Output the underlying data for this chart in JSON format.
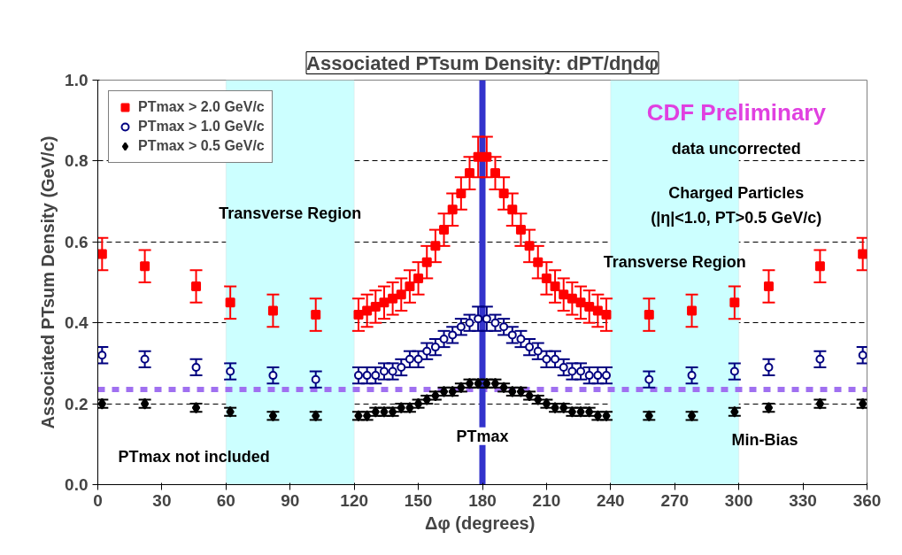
{
  "chart_data": {
    "type": "scatter",
    "title": "Associated PTsum Density: dPT/dηdφ",
    "xlabel": "Δφ  (degrees)",
    "ylabel": "Associated PTsum Density (GeV/c)",
    "x": [
      2,
      22,
      46,
      62,
      82,
      102,
      122,
      126,
      130,
      134,
      138,
      142,
      146,
      150,
      154,
      158,
      162,
      166,
      170,
      174,
      178,
      182,
      186,
      190,
      194,
      198,
      202,
      206,
      210,
      214,
      218,
      222,
      226,
      230,
      234,
      238,
      258,
      278,
      298,
      314,
      338,
      358
    ],
    "series": [
      {
        "name": "PTmax > 2.0 GeV/c",
        "color": "#ff0000",
        "marker": "square",
        "values": [
          0.57,
          0.54,
          0.49,
          0.45,
          0.43,
          0.42,
          0.42,
          0.43,
          0.44,
          0.45,
          0.46,
          0.47,
          0.49,
          0.51,
          0.55,
          0.59,
          0.63,
          0.68,
          0.72,
          0.77,
          0.81,
          0.81,
          0.77,
          0.72,
          0.68,
          0.63,
          0.59,
          0.55,
          0.51,
          0.49,
          0.47,
          0.46,
          0.45,
          0.44,
          0.43,
          0.42,
          0.42,
          0.43,
          0.45,
          0.49,
          0.54,
          0.57
        ],
        "errors": [
          0.04,
          0.04,
          0.04,
          0.04,
          0.04,
          0.04,
          0.04,
          0.04,
          0.04,
          0.04,
          0.04,
          0.04,
          0.04,
          0.04,
          0.04,
          0.04,
          0.04,
          0.04,
          0.04,
          0.04,
          0.05,
          0.05,
          0.04,
          0.04,
          0.04,
          0.04,
          0.04,
          0.04,
          0.04,
          0.04,
          0.04,
          0.04,
          0.04,
          0.04,
          0.04,
          0.04,
          0.04,
          0.04,
          0.04,
          0.04,
          0.04,
          0.04
        ]
      },
      {
        "name": "PTmax > 1.0 GeV/c",
        "color": "#000080",
        "marker": "circle",
        "values": [
          0.32,
          0.31,
          0.29,
          0.28,
          0.27,
          0.26,
          0.27,
          0.27,
          0.27,
          0.28,
          0.28,
          0.29,
          0.31,
          0.31,
          0.33,
          0.34,
          0.36,
          0.37,
          0.39,
          0.4,
          0.41,
          0.41,
          0.4,
          0.39,
          0.37,
          0.36,
          0.34,
          0.33,
          0.31,
          0.31,
          0.29,
          0.28,
          0.28,
          0.27,
          0.27,
          0.27,
          0.26,
          0.27,
          0.28,
          0.29,
          0.31,
          0.32
        ],
        "errors": [
          0.02,
          0.02,
          0.02,
          0.02,
          0.02,
          0.02,
          0.02,
          0.02,
          0.02,
          0.02,
          0.02,
          0.02,
          0.02,
          0.02,
          0.02,
          0.02,
          0.02,
          0.02,
          0.02,
          0.02,
          0.03,
          0.03,
          0.02,
          0.02,
          0.02,
          0.02,
          0.02,
          0.02,
          0.02,
          0.02,
          0.02,
          0.02,
          0.02,
          0.02,
          0.02,
          0.02,
          0.02,
          0.02,
          0.02,
          0.02,
          0.02,
          0.02
        ]
      },
      {
        "name": "PTmax > 0.5 GeV/c",
        "color": "#000000",
        "marker": "diamond",
        "values": [
          0.2,
          0.2,
          0.19,
          0.18,
          0.17,
          0.17,
          0.17,
          0.17,
          0.18,
          0.18,
          0.18,
          0.19,
          0.19,
          0.2,
          0.21,
          0.22,
          0.23,
          0.23,
          0.24,
          0.25,
          0.25,
          0.25,
          0.25,
          0.24,
          0.23,
          0.23,
          0.22,
          0.21,
          0.2,
          0.19,
          0.19,
          0.18,
          0.18,
          0.18,
          0.17,
          0.17,
          0.17,
          0.17,
          0.18,
          0.19,
          0.2,
          0.2
        ],
        "errors": [
          0.01,
          0.01,
          0.01,
          0.01,
          0.01,
          0.01,
          0.01,
          0.01,
          0.01,
          0.01,
          0.01,
          0.01,
          0.01,
          0.01,
          0.01,
          0.01,
          0.01,
          0.01,
          0.01,
          0.01,
          0.01,
          0.01,
          0.01,
          0.01,
          0.01,
          0.01,
          0.01,
          0.01,
          0.01,
          0.01,
          0.01,
          0.01,
          0.01,
          0.01,
          0.01,
          0.01,
          0.01,
          0.01,
          0.01,
          0.01,
          0.01,
          0.01
        ]
      }
    ],
    "xlim": [
      0,
      360
    ],
    "xticks": [
      0,
      30,
      60,
      90,
      120,
      150,
      180,
      210,
      240,
      270,
      300,
      330,
      360
    ],
    "ylim": [
      0,
      1
    ],
    "yticks": [
      {
        "value": 0,
        "label": "0.0"
      },
      {
        "value": 0.2,
        "label": "0.2"
      },
      {
        "value": 0.4,
        "label": "0.4"
      },
      {
        "value": 0.6,
        "label": "0.6"
      },
      {
        "value": 0.8,
        "label": "0.8"
      },
      {
        "value": 1,
        "label": "1.0"
      }
    ],
    "grid": "y",
    "legend": "top left",
    "bands": [
      {
        "axis": "x",
        "from": 60,
        "to": 120,
        "color": "#ccffff"
      },
      {
        "axis": "x",
        "from": 240,
        "to": 300,
        "color": "#ccffff"
      }
    ],
    "ref_lines": [
      {
        "axis": "y",
        "value": 0.235,
        "color": "#a070f0",
        "line_style": "dotted"
      },
      {
        "axis": "x",
        "value": 180,
        "color": "#3333cc",
        "line_style": "solid"
      }
    ],
    "annotations": [
      "CDF Preliminary",
      "data uncorrected",
      "Charged Particles",
      "(|η|<1.0, PT>0.5 GeV/c)",
      "Transverse Region",
      "Transverse Region",
      "PTmax not included",
      "PTmax",
      "Min-Bias"
    ]
  }
}
